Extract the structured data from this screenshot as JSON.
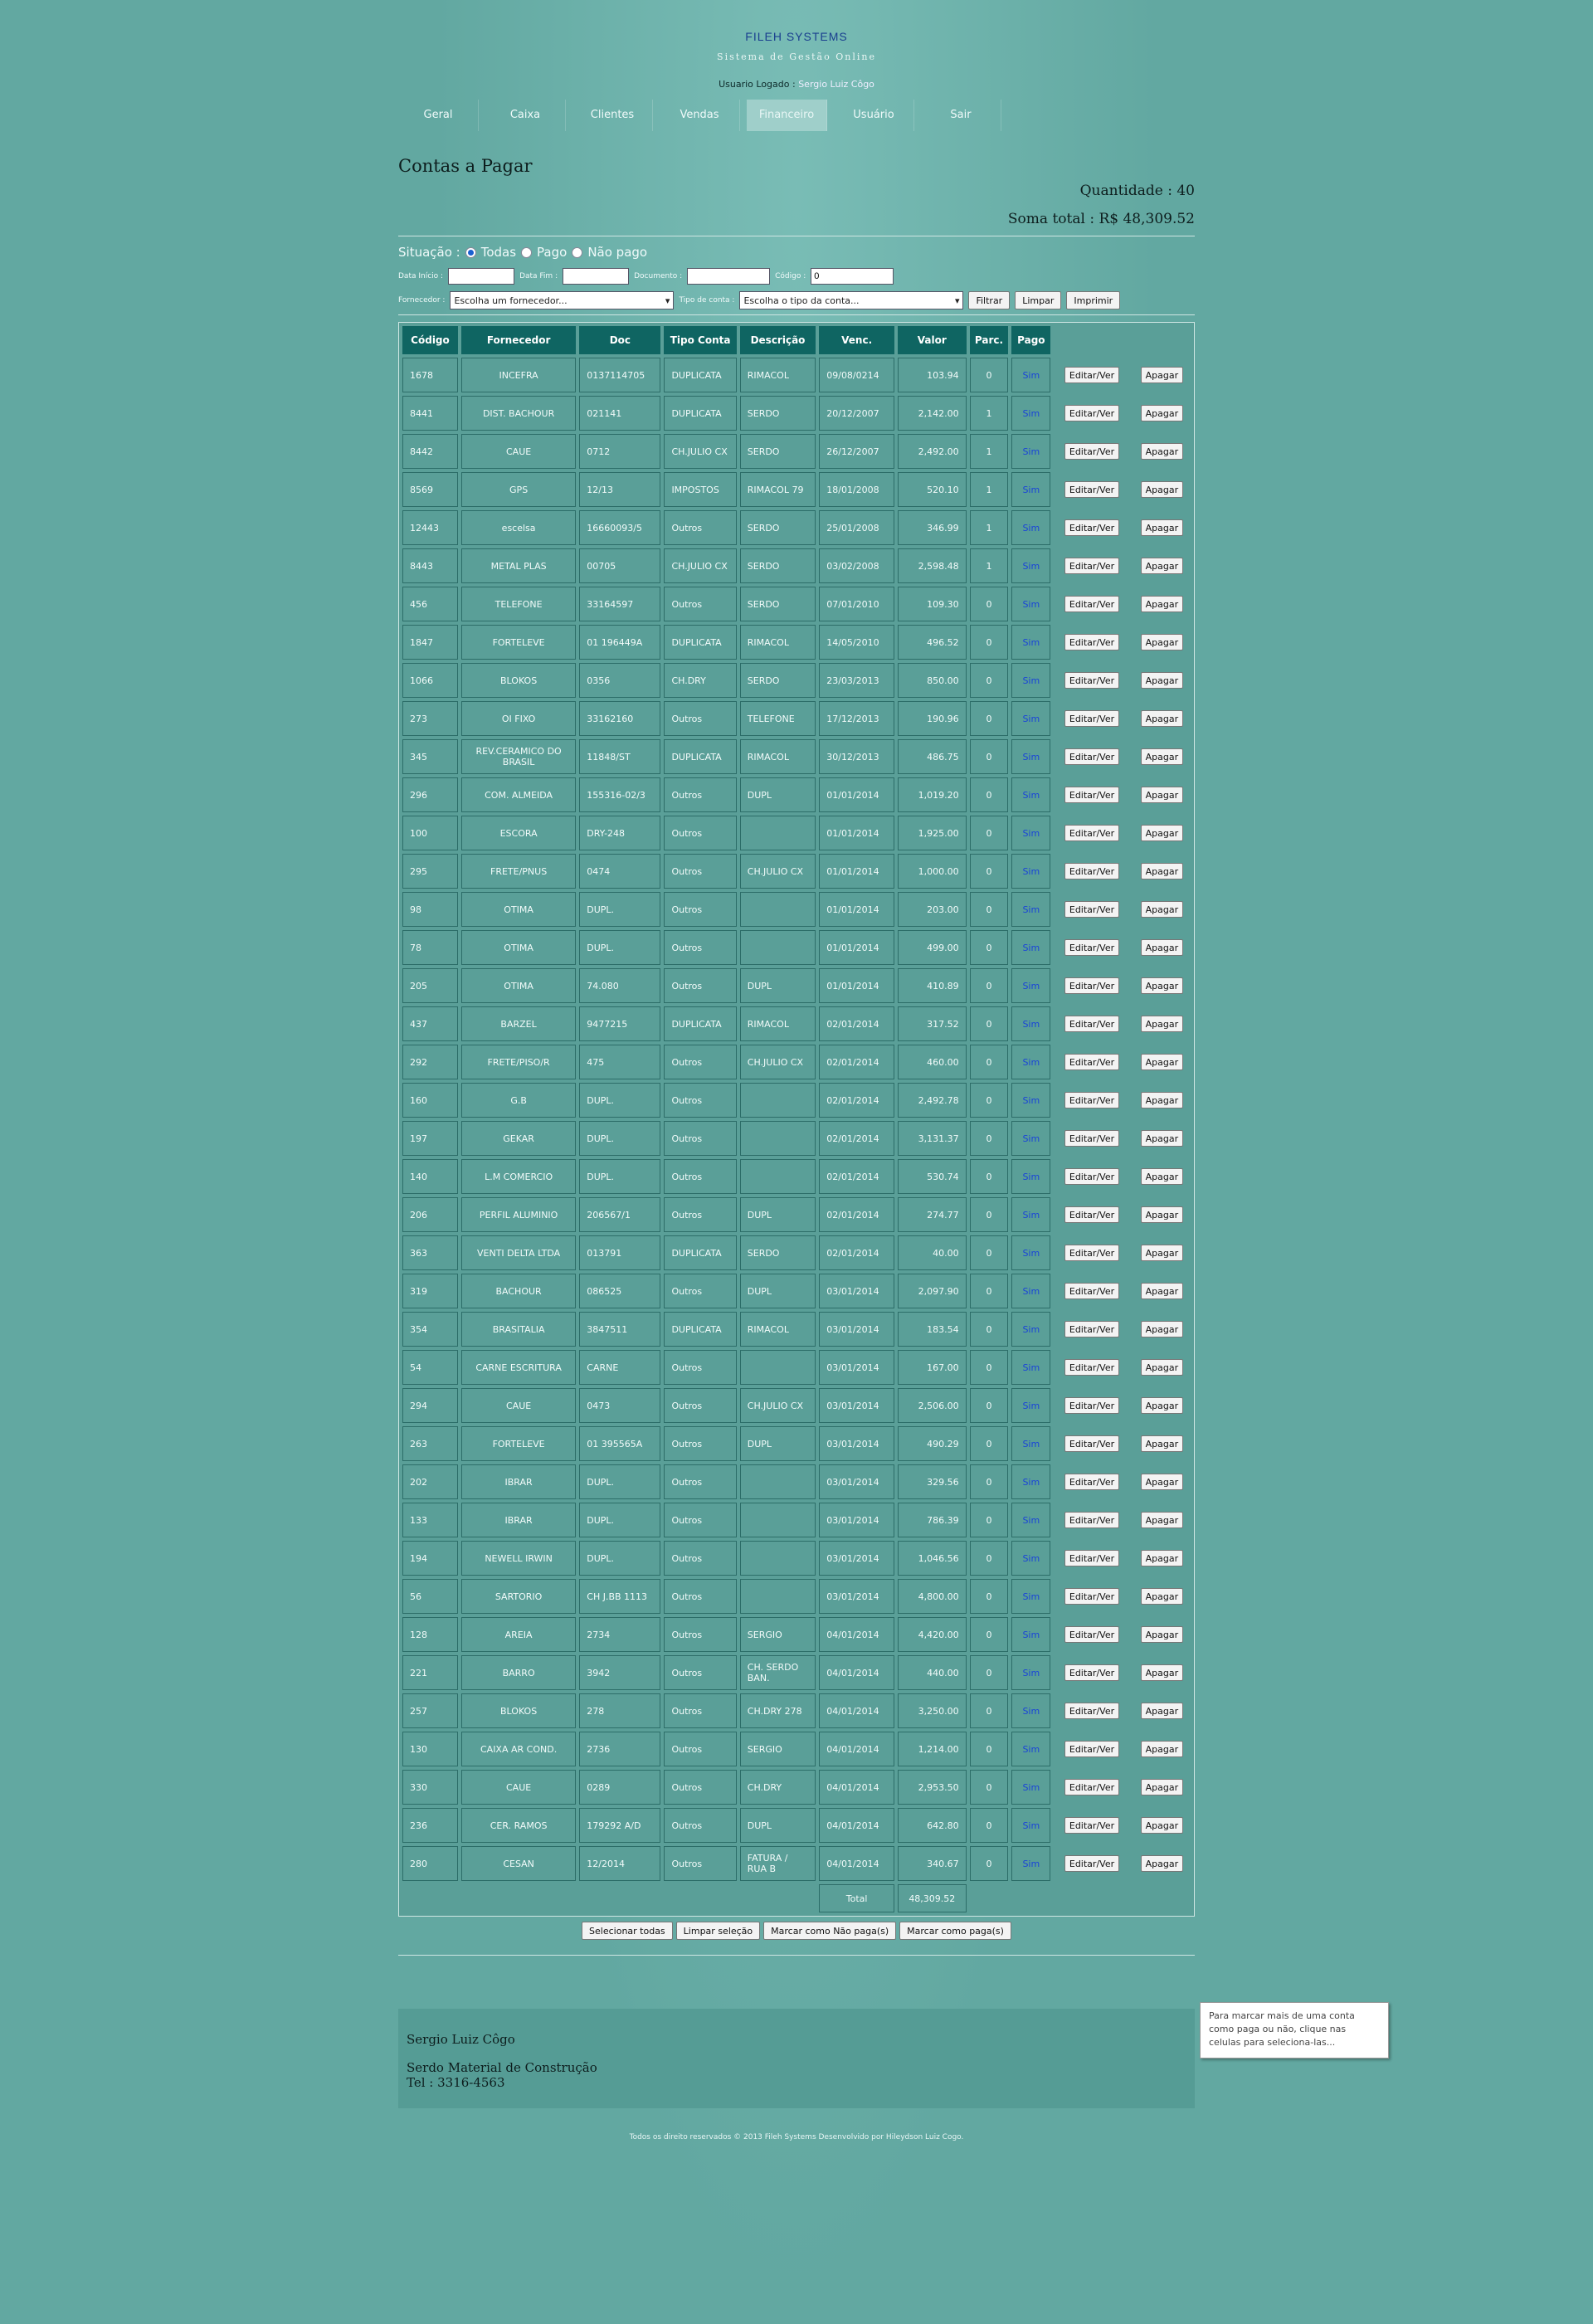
{
  "brand": {
    "name": "FILEH SYSTEMS",
    "tagline": "Sistema de Gestão Online"
  },
  "user": {
    "label": "Usuario Logado :",
    "name": "Sergio Luiz Côgo"
  },
  "nav": [
    "Geral",
    "Caixa",
    "Clientes",
    "Vendas",
    "Financeiro",
    "Usuário",
    "Sair"
  ],
  "page": {
    "title": "Contas a Pagar",
    "quantidade": "Quantidade : 40",
    "soma": "Soma total : R$ 48,309.52"
  },
  "filters": {
    "situacao_label": "Situação :",
    "opt_todas": "Todas",
    "opt_pago": "Pago",
    "opt_nao_pago": "Não pago",
    "data_inicio_label": "Data Início :",
    "data_fim_label": "Data Fim :",
    "documento_label": "Documento :",
    "codigo_label": "Código :",
    "codigo_value": "0",
    "fornecedor_label": "Fornecedor :",
    "fornecedor_value": "Escolha um fornecedor...",
    "tipo_label": "Tipo de conta :",
    "tipo_value": "Escolha o tipo da conta...",
    "filtrar": "Filtrar",
    "limpar": "Limpar",
    "imprimir": "Imprimir"
  },
  "table": {
    "headers": [
      "Código",
      "Fornecedor",
      "Doc",
      "Tipo Conta",
      "Descrição",
      "Venc.",
      "Valor",
      "Parc.",
      "Pago"
    ],
    "edit_label": "Editar/Ver",
    "delete_label": "Apagar",
    "rows": [
      [
        "1678",
        "INCEFRA",
        "0137114705",
        "DUPLICATA",
        "RIMACOL",
        "09/08/0214",
        "103.94",
        "0",
        "Sim"
      ],
      [
        "8441",
        "DIST. BACHOUR",
        "021141",
        "DUPLICATA",
        "SERDO",
        "20/12/2007",
        "2,142.00",
        "1",
        "Sim"
      ],
      [
        "8442",
        "CAUE",
        "0712",
        "CH.JULIO CX",
        "SERDO",
        "26/12/2007",
        "2,492.00",
        "1",
        "Sim"
      ],
      [
        "8569",
        "GPS",
        "12/13",
        "IMPOSTOS",
        "RIMACOL 79",
        "18/01/2008",
        "520.10",
        "1",
        "Sim"
      ],
      [
        "12443",
        "escelsa",
        "16660093/5",
        "Outros",
        "SERDO",
        "25/01/2008",
        "346.99",
        "1",
        "Sim"
      ],
      [
        "8443",
        "METAL PLAS",
        "00705",
        "CH.JULIO CX",
        "SERDO",
        "03/02/2008",
        "2,598.48",
        "1",
        "Sim"
      ],
      [
        "456",
        "TELEFONE",
        "33164597",
        "Outros",
        "SERDO",
        "07/01/2010",
        "109.30",
        "0",
        "Sim"
      ],
      [
        "1847",
        "FORTELEVE",
        "01 196449A",
        "DUPLICATA",
        "RIMACOL",
        "14/05/2010",
        "496.52",
        "0",
        "Sim"
      ],
      [
        "1066",
        "BLOKOS",
        "0356",
        "CH.DRY",
        "SERDO",
        "23/03/2013",
        "850.00",
        "0",
        "Sim"
      ],
      [
        "273",
        "OI FIXO",
        "33162160",
        "Outros",
        "TELEFONE",
        "17/12/2013",
        "190.96",
        "0",
        "Sim"
      ],
      [
        "345",
        "REV.CERAMICO DO BRASIL",
        "11848/ST",
        "DUPLICATA",
        "RIMACOL",
        "30/12/2013",
        "486.75",
        "0",
        "Sim"
      ],
      [
        "296",
        "COM. ALMEIDA",
        "155316-02/3",
        "Outros",
        "DUPL",
        "01/01/2014",
        "1,019.20",
        "0",
        "Sim"
      ],
      [
        "100",
        "ESCORA",
        "DRY-248",
        "Outros",
        "",
        "01/01/2014",
        "1,925.00",
        "0",
        "Sim"
      ],
      [
        "295",
        "FRETE/PNUS",
        "0474",
        "Outros",
        "CH.JULIO CX",
        "01/01/2014",
        "1,000.00",
        "0",
        "Sim"
      ],
      [
        "98",
        "OTIMA",
        "DUPL.",
        "Outros",
        "",
        "01/01/2014",
        "203.00",
        "0",
        "Sim"
      ],
      [
        "78",
        "OTIMA",
        "DUPL.",
        "Outros",
        "",
        "01/01/2014",
        "499.00",
        "0",
        "Sim"
      ],
      [
        "205",
        "OTIMA",
        "74.080",
        "Outros",
        "DUPL",
        "01/01/2014",
        "410.89",
        "0",
        "Sim"
      ],
      [
        "437",
        "BARZEL",
        "9477215",
        "DUPLICATA",
        "RIMACOL",
        "02/01/2014",
        "317.52",
        "0",
        "Sim"
      ],
      [
        "292",
        "FRETE/PISO/R",
        "475",
        "Outros",
        "CH.JULIO CX",
        "02/01/2014",
        "460.00",
        "0",
        "Sim"
      ],
      [
        "160",
        "G.B",
        "DUPL.",
        "Outros",
        "",
        "02/01/2014",
        "2,492.78",
        "0",
        "Sim"
      ],
      [
        "197",
        "GEKAR",
        "DUPL.",
        "Outros",
        "",
        "02/01/2014",
        "3,131.37",
        "0",
        "Sim"
      ],
      [
        "140",
        "L.M COMERCIO",
        "DUPL.",
        "Outros",
        "",
        "02/01/2014",
        "530.74",
        "0",
        "Sim"
      ],
      [
        "206",
        "PERFIL ALUMINIO",
        "206567/1",
        "Outros",
        "DUPL",
        "02/01/2014",
        "274.77",
        "0",
        "Sim"
      ],
      [
        "363",
        "VENTI DELTA LTDA",
        "013791",
        "DUPLICATA",
        "SERDO",
        "02/01/2014",
        "40.00",
        "0",
        "Sim"
      ],
      [
        "319",
        "BACHOUR",
        "086525",
        "Outros",
        "DUPL",
        "03/01/2014",
        "2,097.90",
        "0",
        "Sim"
      ],
      [
        "354",
        "BRASITALIA",
        "3847511",
        "DUPLICATA",
        "RIMACOL",
        "03/01/2014",
        "183.54",
        "0",
        "Sim"
      ],
      [
        "54",
        "CARNE ESCRITURA",
        "CARNE",
        "Outros",
        "",
        "03/01/2014",
        "167.00",
        "0",
        "Sim"
      ],
      [
        "294",
        "CAUE",
        "0473",
        "Outros",
        "CH.JULIO CX",
        "03/01/2014",
        "2,506.00",
        "0",
        "Sim"
      ],
      [
        "263",
        "FORTELEVE",
        "01 395565A",
        "Outros",
        "DUPL",
        "03/01/2014",
        "490.29",
        "0",
        "Sim"
      ],
      [
        "202",
        "IBRAR",
        "DUPL.",
        "Outros",
        "",
        "03/01/2014",
        "329.56",
        "0",
        "Sim"
      ],
      [
        "133",
        "IBRAR",
        "DUPL.",
        "Outros",
        "",
        "03/01/2014",
        "786.39",
        "0",
        "Sim"
      ],
      [
        "194",
        "NEWELL IRWIN",
        "DUPL.",
        "Outros",
        "",
        "03/01/2014",
        "1,046.56",
        "0",
        "Sim"
      ],
      [
        "56",
        "SARTORIO",
        "CH J.BB 1113",
        "Outros",
        "",
        "03/01/2014",
        "4,800.00",
        "0",
        "Sim"
      ],
      [
        "128",
        "AREIA",
        "2734",
        "Outros",
        "SERGIO",
        "04/01/2014",
        "4,420.00",
        "0",
        "Sim"
      ],
      [
        "221",
        "BARRO",
        "3942",
        "Outros",
        "CH. SERDO BAN.",
        "04/01/2014",
        "440.00",
        "0",
        "Sim"
      ],
      [
        "257",
        "BLOKOS",
        "278",
        "Outros",
        "CH.DRY 278",
        "04/01/2014",
        "3,250.00",
        "0",
        "Sim"
      ],
      [
        "130",
        "CAIXA AR COND.",
        "2736",
        "Outros",
        "SERGIO",
        "04/01/2014",
        "1,214.00",
        "0",
        "Sim"
      ],
      [
        "330",
        "CAUE",
        "0289",
        "Outros",
        "CH.DRY",
        "04/01/2014",
        "2,953.50",
        "0",
        "Sim"
      ],
      [
        "236",
        "CER. RAMOS",
        "179292 A/D",
        "Outros",
        "DUPL",
        "04/01/2014",
        "642.80",
        "0",
        "Sim"
      ],
      [
        "280",
        "CESAN",
        "12/2014",
        "Outros",
        "FATURA / RUA B",
        "04/01/2014",
        "340.67",
        "0",
        "Sim"
      ]
    ],
    "total_label": "Total",
    "total_value": "48,309.52"
  },
  "bulk": {
    "select_all": "Selecionar todas",
    "clear_sel": "Limpar seleção",
    "mark_unpaid": "Marcar como Não paga(s)",
    "mark_paid": "Marcar como paga(s)"
  },
  "tooltip": "Para marcar mais de uma conta como paga ou não, clique nas celulas para seleciona-las...",
  "footer": {
    "name": "Sergio Luiz Côgo",
    "company": "Serdo Material de Construção",
    "tel": "Tel : 3316-4563"
  },
  "copyright": "Todos os direito reservados © 2013 Fileh Systems Desenvolvido por Hileydson Luiz Cogo."
}
